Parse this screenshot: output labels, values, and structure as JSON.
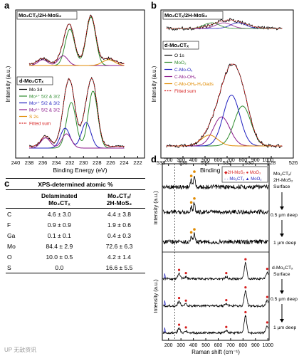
{
  "panels": {
    "a": "a",
    "b": "b",
    "c": "c",
    "d": "d"
  },
  "chart_data": [
    {
      "panel": "a",
      "type": "line",
      "xlabel": "Binding Energy (eV)",
      "ylabel": "Intensity (a.u.)",
      "x_ticks": [
        240,
        238,
        236,
        234,
        232,
        230,
        228,
        226,
        224,
        222
      ],
      "xlim": [
        240,
        221
      ],
      "x_reversed": true,
      "sample_labels": [
        "Mo2CTx/2H-MoS2",
        "d-Mo2CTx"
      ],
      "legend": [
        {
          "label": "Mo 3d",
          "color": "#000000"
        },
        {
          "label": "Mo4+ 5/2 & 3/2",
          "color": "#2e8b2e"
        },
        {
          "label": "Mo5+ 5/2 & 3/2",
          "color": "#1f1fbf"
        },
        {
          "label": "Mo6+ 5/2 & 3/2",
          "color": "#8b1a8b"
        },
        {
          "label": "S 2s",
          "color": "#e08a00"
        },
        {
          "label": "Fitted sum",
          "color": "#d62020"
        }
      ],
      "series": [
        {
          "sample": "Mo2CTx/2H-MoS2",
          "component": "Mo4+",
          "peaks": [
            [
              228.9,
              1.0
            ],
            [
              232.0,
              0.75
            ]
          ]
        },
        {
          "sample": "Mo2CTx/2H-MoS2",
          "component": "Mo6+",
          "peaks": [
            [
              233.0,
              0.2
            ],
            [
              236.0,
              0.12
            ]
          ]
        },
        {
          "sample": "d-Mo2CTx",
          "component": "Mo4+",
          "peaks": [
            [
              228.6,
              1.0
            ],
            [
              231.8,
              0.8
            ]
          ]
        },
        {
          "sample": "d-Mo2CTx",
          "component": "Mo5+",
          "peaks": [
            [
              229.6,
              0.45
            ],
            [
              232.7,
              0.35
            ]
          ]
        },
        {
          "sample": "d-Mo2CTx",
          "component": "Mo6+",
          "peaks": [
            [
              232.5,
              0.25
            ],
            [
              235.6,
              0.18
            ]
          ]
        }
      ]
    },
    {
      "panel": "b",
      "type": "line",
      "xlabel": "Binding Energy (eV)",
      "ylabel": "Intensity (a.u.)",
      "x_ticks": [
        538,
        536,
        534,
        532,
        530,
        528,
        526
      ],
      "xlim": [
        538,
        526
      ],
      "x_reversed": true,
      "sample_labels": [
        "Mo2CTx/2H-MoS2",
        "d-Mo2CTx"
      ],
      "legend": [
        {
          "label": "O 1s",
          "color": "#000000"
        },
        {
          "label": "MoO2",
          "color": "#2e8b2e"
        },
        {
          "label": "C-Mo-Ox",
          "color": "#1f1fbf"
        },
        {
          "label": "C-Mo-OHx",
          "color": "#8b1a8b"
        },
        {
          "label": "C-Mo-OHx-H2Oads",
          "color": "#e08a00"
        },
        {
          "label": "Fitted sum",
          "color": "#d62020"
        }
      ],
      "series": [
        {
          "sample": "d-Mo2CTx",
          "component": "MoO2",
          "peaks": [
            [
              530.6,
              0.55
            ]
          ]
        },
        {
          "sample": "d-Mo2CTx",
          "component": "C-Mo-Ox",
          "peaks": [
            [
              531.6,
              0.7
            ]
          ]
        },
        {
          "sample": "d-Mo2CTx",
          "component": "C-Mo-OHx",
          "peaks": [
            [
              532.5,
              0.4
            ]
          ]
        },
        {
          "sample": "d-Mo2CTx",
          "component": "C-Mo-OHx-H2Oads",
          "peaks": [
            [
              533.6,
              0.15
            ]
          ]
        }
      ]
    },
    {
      "panel": "d",
      "type": "line",
      "xlabel": "Raman shift (cm-1)",
      "ylabel": "Intensity (a.u.)",
      "x_ticks": [
        200,
        300,
        400,
        500,
        600,
        700,
        800,
        900,
        1000
      ],
      "xlim": [
        150,
        1010
      ],
      "legend": [
        {
          "label": "2H-MoS2",
          "marker": "diamond",
          "color": "#e08a00"
        },
        {
          "label": "MoO3",
          "marker": "circle",
          "color": "#d62020"
        },
        {
          "label": "Mo2CTx",
          "marker": "dashed-line",
          "color": "#000000"
        },
        {
          "label": "MoO2",
          "marker": "triangle",
          "color": "#1f1fbf"
        }
      ],
      "traces": [
        {
          "group": "Mo2CTx/2H-MoS2",
          "label": "Mo2CTx/ 2H-MoS2 Surface",
          "peaks": [
            [
              383,
              0.35
            ],
            [
              408,
              0.55
            ]
          ]
        },
        {
          "group": "Mo2CTx/2H-MoS2",
          "label": "0.5 μm deep",
          "peaks": [
            [
              383,
              0.3
            ],
            [
              408,
              0.5
            ]
          ]
        },
        {
          "group": "Mo2CTx/2H-MoS2",
          "label": "1 μm deep",
          "peaks": [
            [
              383,
              0.3
            ],
            [
              408,
              0.45
            ]
          ]
        },
        {
          "group": "d-Mo2CTx",
          "label": "d-Mo2CTx Surface",
          "peaks": [
            [
              285,
              0.25
            ],
            [
              340,
              0.1
            ],
            [
              665,
              0.1
            ],
            [
              820,
              0.75
            ],
            [
              995,
              0.3
            ]
          ]
        },
        {
          "group": "d-Mo2CTx",
          "label": "0.5 μm deep",
          "peaks": [
            [
              285,
              0.2
            ],
            [
              340,
              0.08
            ],
            [
              665,
              0.1
            ],
            [
              820,
              0.7
            ],
            [
              995,
              0.25
            ]
          ]
        },
        {
          "group": "d-Mo2CTx",
          "label": "1 μm deep",
          "peaks": [
            [
              285,
              0.2
            ],
            [
              340,
              0.08
            ],
            [
              665,
              0.1
            ],
            [
              820,
              0.75
            ],
            [
              995,
              0.3
            ]
          ]
        }
      ],
      "reference_lines": [
        150,
        250
      ]
    },
    {
      "panel": "c",
      "type": "table",
      "title": "XPS-determined atomic %",
      "columns": [
        "",
        "Delaminated Mo2CTx",
        "Mo2CTx/ 2H-MoS2"
      ],
      "rows": [
        [
          "C",
          "4.6 ± 3.0",
          "4.4 ± 3.8"
        ],
        [
          "F",
          "0.9 ± 0.9",
          "1.9 ± 0.6"
        ],
        [
          "Ga",
          "0.1 ± 0.1",
          "0.4 ± 0.3"
        ],
        [
          "Mo",
          "84.4 ± 2.9",
          "72.6 ± 6.3"
        ],
        [
          "O",
          "10.0 ± 0.5",
          "4.2 ± 1.4"
        ],
        [
          "S",
          "0.0",
          "16.6 ± 5.5"
        ]
      ]
    }
  ],
  "table": {
    "title": "XPS-determined atomic %",
    "col1": "Delaminated",
    "col1b": "Mo₂CTₓ",
    "col2": "Mo₂CTₓ/",
    "col2b": "2H-MoS₂",
    "rows": [
      {
        "el": "C",
        "a": "4.6 ± 3.0",
        "b": "4.4 ± 3.8"
      },
      {
        "el": "F",
        "a": "0.9 ± 0.9",
        "b": "1.9 ± 0.6"
      },
      {
        "el": "Ga",
        "a": "0.1 ± 0.1",
        "b": "0.4 ± 0.3"
      },
      {
        "el": "Mo",
        "a": "84.4 ± 2.9",
        "b": "72.6 ± 6.3"
      },
      {
        "el": "O",
        "a": "10.0 ± 0.5",
        "b": "4.2 ± 1.4"
      },
      {
        "el": "S",
        "a": "0.0",
        "b": "16.6 ± 5.5"
      }
    ]
  },
  "labels": {
    "a_top": "Mo₂CTₓ/2H-MoS₂",
    "a_bot": "d-Mo₂CTₓ",
    "b_top": "Mo₂CTₓ/2H-MoS₂",
    "b_bot": "d-Mo₂CTₓ",
    "legA": [
      "Mo 3d",
      "Mo⁴⁺ 5/2 & 3/2",
      "Mo⁵⁺ 5/2 & 3/2",
      "Mo⁶⁺ 5/2 & 3/2",
      "S 2s",
      "Fitted sum"
    ],
    "legB": [
      "O 1s",
      "MoO₂",
      "C-Mo-Oₓ",
      "C-Mo-OHₓ",
      "C-Mo-OHₓ-H₂Oads",
      "Fitted sum"
    ],
    "legD1": "2H-MoS₂ ● MoO₃",
    "legD2": "Mo₂CTₓ ▲ MoO₂",
    "d_right": [
      "Mo₂CTₓ/",
      "2H-MoS₂",
      "Surface",
      "0.5 μm deep",
      "1 μm deep",
      "d-Mo₂CTₓ",
      "Surface",
      "0.5 μm deep",
      "1 μm deep"
    ],
    "d_axis": "Raman shift (cm⁻¹)",
    "be_axis": "Binding Energy (eV)",
    "intensity": "Intensity (a.u.)"
  },
  "watermark": "UP 无敌资讯"
}
